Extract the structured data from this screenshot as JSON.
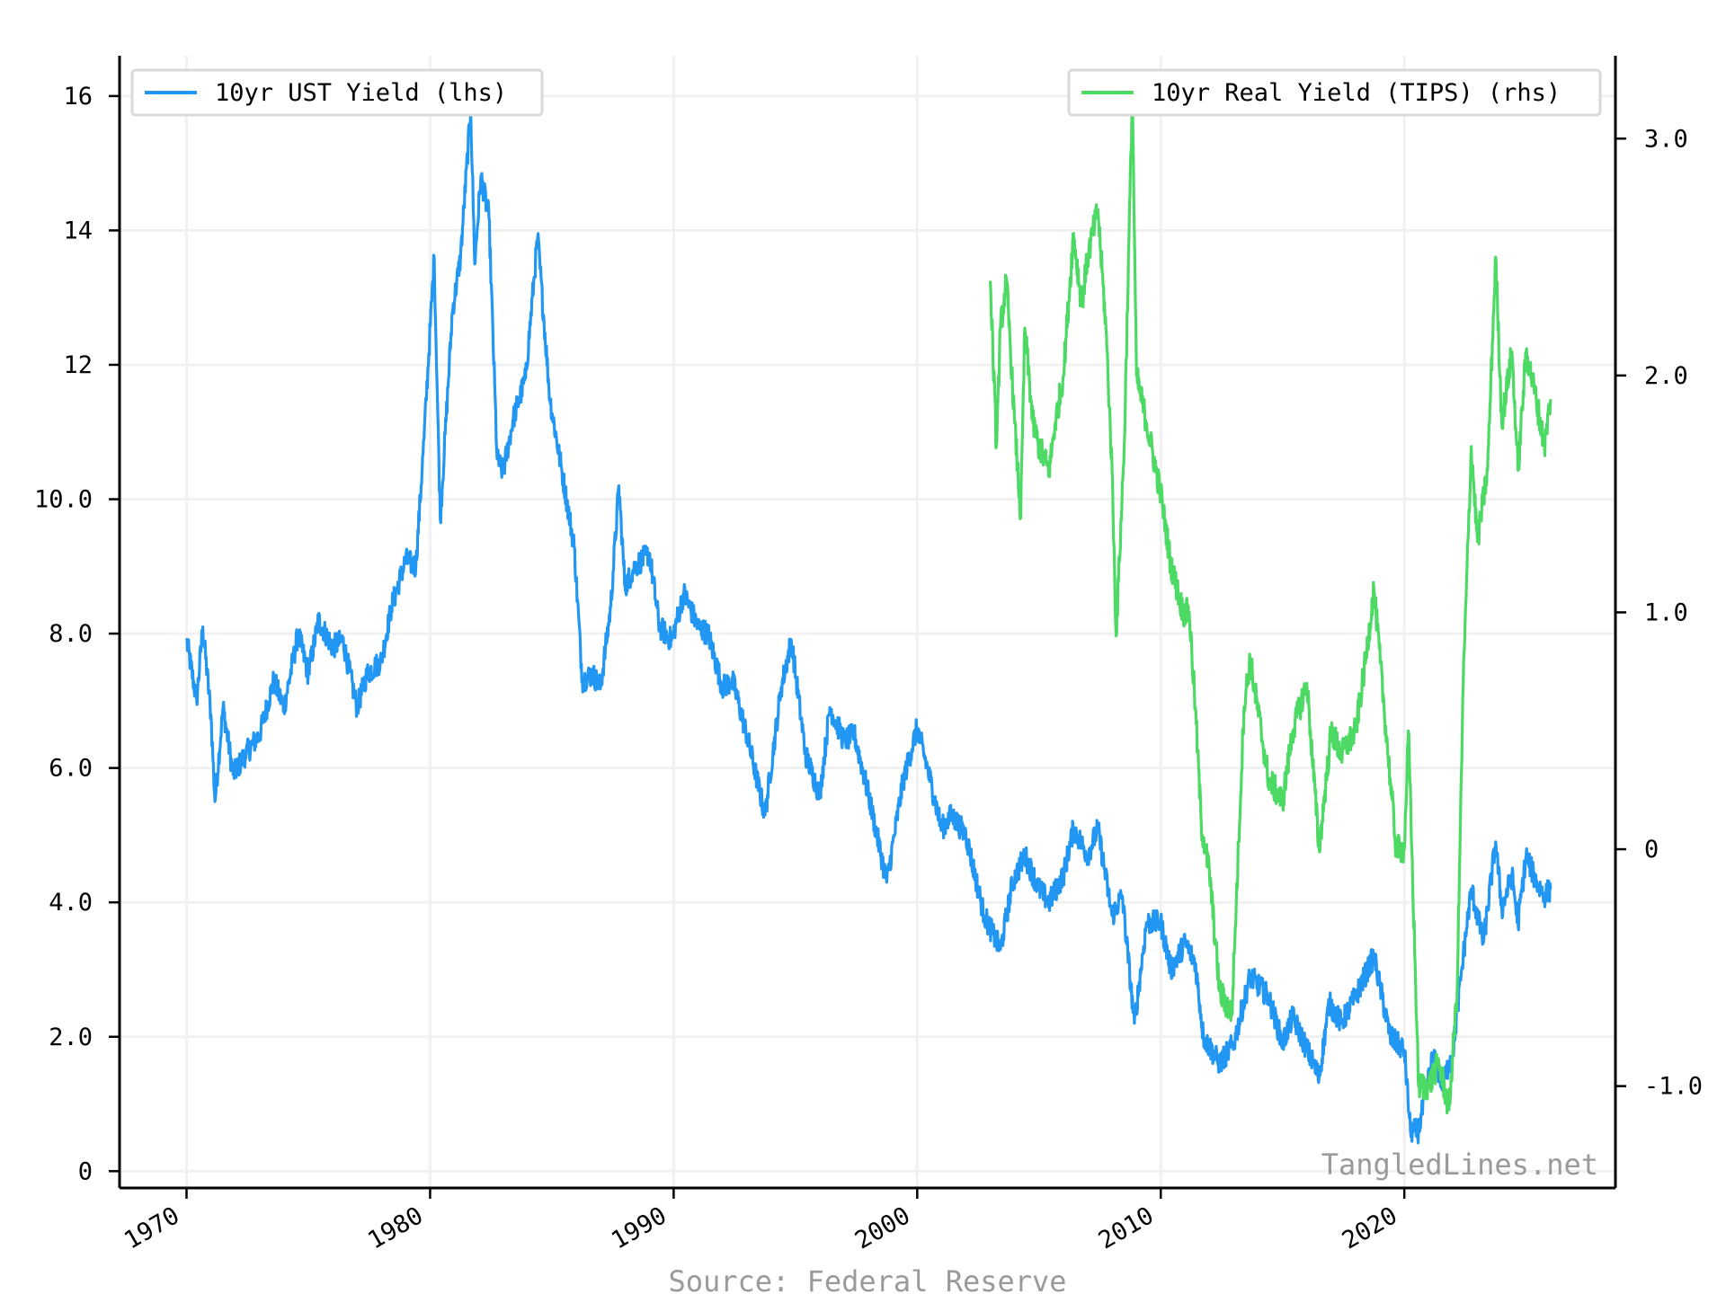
{
  "chart_data": {
    "type": "line",
    "title": "",
    "xlabel": "",
    "x_range": [
      "1967-04-01",
      "2028-09-01"
    ],
    "x_ticks": [
      "1970",
      "1980",
      "1990",
      "2000",
      "2010",
      "2020"
    ],
    "left_axis": {
      "ylabel": "",
      "ylim": [
        -0.25,
        16.6
      ],
      "ticks": [
        0,
        2,
        4,
        6,
        8,
        10,
        12,
        14,
        16
      ],
      "tick_labels": [
        "0",
        "2.0",
        "4.0",
        "6.0",
        "8.0",
        "10.0",
        "12",
        "14",
        "16"
      ]
    },
    "right_axis": {
      "ylabel": "",
      "ylim": [
        -1.43,
        3.35
      ],
      "ticks": [
        -1,
        0,
        1,
        2,
        3
      ],
      "tick_labels": [
        "-1.0",
        "0",
        "1.0",
        "2.0",
        "3.0"
      ]
    },
    "grid": true,
    "series": [
      {
        "name": "10yr UST Yield (lhs)",
        "axis": "left",
        "color": "#2196f3",
        "points": [
          [
            "1970-01-01",
            7.9
          ],
          [
            "1970-06-01",
            7.0
          ],
          [
            "1970-09-01",
            8.1
          ],
          [
            "1971-01-01",
            6.8
          ],
          [
            "1971-03-01",
            5.5
          ],
          [
            "1971-07-01",
            6.9
          ],
          [
            "1971-12-01",
            5.9
          ],
          [
            "1972-06-01",
            6.2
          ],
          [
            "1973-01-01",
            6.5
          ],
          [
            "1973-08-01",
            7.3
          ],
          [
            "1974-01-01",
            6.9
          ],
          [
            "1974-08-01",
            8.0
          ],
          [
            "1975-01-01",
            7.4
          ],
          [
            "1975-06-01",
            8.2
          ],
          [
            "1976-01-01",
            7.8
          ],
          [
            "1976-06-01",
            7.9
          ],
          [
            "1977-01-01",
            6.9
          ],
          [
            "1977-06-01",
            7.4
          ],
          [
            "1978-01-01",
            7.6
          ],
          [
            "1978-06-01",
            8.4
          ],
          [
            "1979-01-01",
            9.1
          ],
          [
            "1979-06-01",
            9.0
          ],
          [
            "1979-10-01",
            10.9
          ],
          [
            "1980-03-01",
            13.6
          ],
          [
            "1980-06-01",
            9.7
          ],
          [
            "1980-12-01",
            12.8
          ],
          [
            "1981-04-01",
            13.6
          ],
          [
            "1981-09-01",
            15.8
          ],
          [
            "1981-11-01",
            13.5
          ],
          [
            "1982-02-01",
            14.8
          ],
          [
            "1982-06-01",
            14.2
          ],
          [
            "1982-10-01",
            10.6
          ],
          [
            "1983-01-01",
            10.4
          ],
          [
            "1983-06-01",
            11.2
          ],
          [
            "1983-12-01",
            11.8
          ],
          [
            "1984-06-01",
            13.9
          ],
          [
            "1984-12-01",
            11.5
          ],
          [
            "1985-06-01",
            10.4
          ],
          [
            "1985-12-01",
            9.3
          ],
          [
            "1986-04-01",
            7.3
          ],
          [
            "1986-09-01",
            7.4
          ],
          [
            "1987-01-01",
            7.2
          ],
          [
            "1987-06-01",
            8.4
          ],
          [
            "1987-10-01",
            10.2
          ],
          [
            "1988-01-01",
            8.7
          ],
          [
            "1988-06-01",
            9.0
          ],
          [
            "1989-01-01",
            9.2
          ],
          [
            "1989-06-01",
            8.1
          ],
          [
            "1989-12-01",
            7.9
          ],
          [
            "1990-06-01",
            8.6
          ],
          [
            "1991-01-01",
            8.1
          ],
          [
            "1991-06-01",
            8.0
          ],
          [
            "1992-01-01",
            7.2
          ],
          [
            "1992-06-01",
            7.3
          ],
          [
            "1993-01-01",
            6.5
          ],
          [
            "1993-10-01",
            5.3
          ],
          [
            "1994-06-01",
            7.2
          ],
          [
            "1994-11-01",
            7.9
          ],
          [
            "1995-06-01",
            6.2
          ],
          [
            "1996-01-01",
            5.6
          ],
          [
            "1996-06-01",
            6.9
          ],
          [
            "1997-01-01",
            6.4
          ],
          [
            "1997-06-01",
            6.5
          ],
          [
            "1998-01-01",
            5.6
          ],
          [
            "1998-10-01",
            4.3
          ],
          [
            "1999-06-01",
            5.8
          ],
          [
            "2000-01-01",
            6.6
          ],
          [
            "2000-06-01",
            6.0
          ],
          [
            "2001-01-01",
            5.1
          ],
          [
            "2001-06-01",
            5.3
          ],
          [
            "2002-01-01",
            5.0
          ],
          [
            "2002-10-01",
            3.8
          ],
          [
            "2003-06-01",
            3.3
          ],
          [
            "2003-12-01",
            4.3
          ],
          [
            "2004-06-01",
            4.7
          ],
          [
            "2005-01-01",
            4.2
          ],
          [
            "2005-06-01",
            4.0
          ],
          [
            "2006-01-01",
            4.4
          ],
          [
            "2006-06-01",
            5.1
          ],
          [
            "2007-01-01",
            4.7
          ],
          [
            "2007-06-01",
            5.1
          ],
          [
            "2008-01-01",
            3.8
          ],
          [
            "2008-06-01",
            4.1
          ],
          [
            "2008-12-01",
            2.2
          ],
          [
            "2009-06-01",
            3.7
          ],
          [
            "2010-01-01",
            3.7
          ],
          [
            "2010-06-01",
            3.0
          ],
          [
            "2011-01-01",
            3.4
          ],
          [
            "2011-06-01",
            3.1
          ],
          [
            "2011-10-01",
            2.0
          ],
          [
            "2012-06-01",
            1.6
          ],
          [
            "2013-01-01",
            1.9
          ],
          [
            "2013-09-01",
            2.9
          ],
          [
            "2014-06-01",
            2.6
          ],
          [
            "2015-01-01",
            1.9
          ],
          [
            "2015-06-01",
            2.3
          ],
          [
            "2016-07-01",
            1.4
          ],
          [
            "2016-12-01",
            2.5
          ],
          [
            "2017-06-01",
            2.2
          ],
          [
            "2018-01-01",
            2.6
          ],
          [
            "2018-10-01",
            3.2
          ],
          [
            "2019-06-01",
            2.0
          ],
          [
            "2020-01-01",
            1.8
          ],
          [
            "2020-04-01",
            0.6
          ],
          [
            "2020-08-01",
            0.6
          ],
          [
            "2021-03-01",
            1.7
          ],
          [
            "2021-08-01",
            1.3
          ],
          [
            "2022-01-01",
            1.8
          ],
          [
            "2022-06-01",
            3.2
          ],
          [
            "2022-10-01",
            4.2
          ],
          [
            "2023-04-01",
            3.4
          ],
          [
            "2023-10-01",
            4.9
          ],
          [
            "2024-01-01",
            3.9
          ],
          [
            "2024-06-01",
            4.4
          ],
          [
            "2024-09-01",
            3.7
          ],
          [
            "2025-01-01",
            4.7
          ],
          [
            "2025-06-01",
            4.3
          ],
          [
            "2025-10-01",
            4.1
          ],
          [
            "2026-01-01",
            4.2
          ]
        ]
      },
      {
        "name": "10yr Real Yield (TIPS) (rhs)",
        "axis": "right",
        "color": "#4cd964",
        "points": [
          [
            "2003-01-01",
            2.4
          ],
          [
            "2003-04-01",
            1.7
          ],
          [
            "2003-06-01",
            2.2
          ],
          [
            "2003-09-01",
            2.4
          ],
          [
            "2004-01-01",
            1.8
          ],
          [
            "2004-04-01",
            1.4
          ],
          [
            "2004-06-01",
            2.2
          ],
          [
            "2004-10-01",
            1.8
          ],
          [
            "2005-01-01",
            1.7
          ],
          [
            "2005-06-01",
            1.6
          ],
          [
            "2005-09-01",
            1.8
          ],
          [
            "2006-01-01",
            2.0
          ],
          [
            "2006-06-01",
            2.6
          ],
          [
            "2006-10-01",
            2.3
          ],
          [
            "2007-01-01",
            2.5
          ],
          [
            "2007-06-01",
            2.7
          ],
          [
            "2007-10-01",
            2.2
          ],
          [
            "2008-01-01",
            1.6
          ],
          [
            "2008-03-01",
            0.9
          ],
          [
            "2008-07-01",
            1.7
          ],
          [
            "2008-11-01",
            3.2
          ],
          [
            "2009-01-01",
            2.0
          ],
          [
            "2009-06-01",
            1.8
          ],
          [
            "2010-01-01",
            1.5
          ],
          [
            "2010-06-01",
            1.2
          ],
          [
            "2010-12-01",
            1.0
          ],
          [
            "2011-03-01",
            1.0
          ],
          [
            "2011-06-01",
            0.6
          ],
          [
            "2011-09-01",
            0.1
          ],
          [
            "2012-01-01",
            -0.1
          ],
          [
            "2012-06-01",
            -0.6
          ],
          [
            "2012-12-01",
            -0.7
          ],
          [
            "2013-06-01",
            0.6
          ],
          [
            "2013-09-01",
            0.8
          ],
          [
            "2014-06-01",
            0.3
          ],
          [
            "2015-01-01",
            0.2
          ],
          [
            "2015-06-01",
            0.5
          ],
          [
            "2016-01-01",
            0.7
          ],
          [
            "2016-07-01",
            0.0
          ],
          [
            "2017-01-01",
            0.5
          ],
          [
            "2017-06-01",
            0.4
          ],
          [
            "2018-01-01",
            0.5
          ],
          [
            "2018-06-01",
            0.8
          ],
          [
            "2018-10-01",
            1.1
          ],
          [
            "2019-06-01",
            0.3
          ],
          [
            "2019-09-01",
            0.0
          ],
          [
            "2020-01-01",
            0.0
          ],
          [
            "2020-03-01",
            0.5
          ],
          [
            "2020-08-01",
            -1.0
          ],
          [
            "2021-01-01",
            -1.0
          ],
          [
            "2021-06-01",
            -0.9
          ],
          [
            "2021-11-01",
            -1.1
          ],
          [
            "2022-03-01",
            -0.6
          ],
          [
            "2022-06-01",
            0.7
          ],
          [
            "2022-10-01",
            1.7
          ],
          [
            "2023-01-01",
            1.3
          ],
          [
            "2023-06-01",
            1.6
          ],
          [
            "2023-10-01",
            2.5
          ],
          [
            "2024-01-01",
            1.8
          ],
          [
            "2024-06-01",
            2.1
          ],
          [
            "2024-09-01",
            1.6
          ],
          [
            "2025-01-01",
            2.1
          ],
          [
            "2025-06-01",
            1.9
          ],
          [
            "2025-10-01",
            1.7
          ],
          [
            "2026-01-01",
            1.9
          ]
        ]
      }
    ],
    "legend": [
      {
        "label": "10yr UST Yield (lhs)",
        "placement": "top-left"
      },
      {
        "label": "10yr Real Yield (TIPS) (rhs)",
        "placement": "top-right"
      }
    ],
    "watermark": "TangledLines.net",
    "source": "Source: Federal Reserve"
  }
}
